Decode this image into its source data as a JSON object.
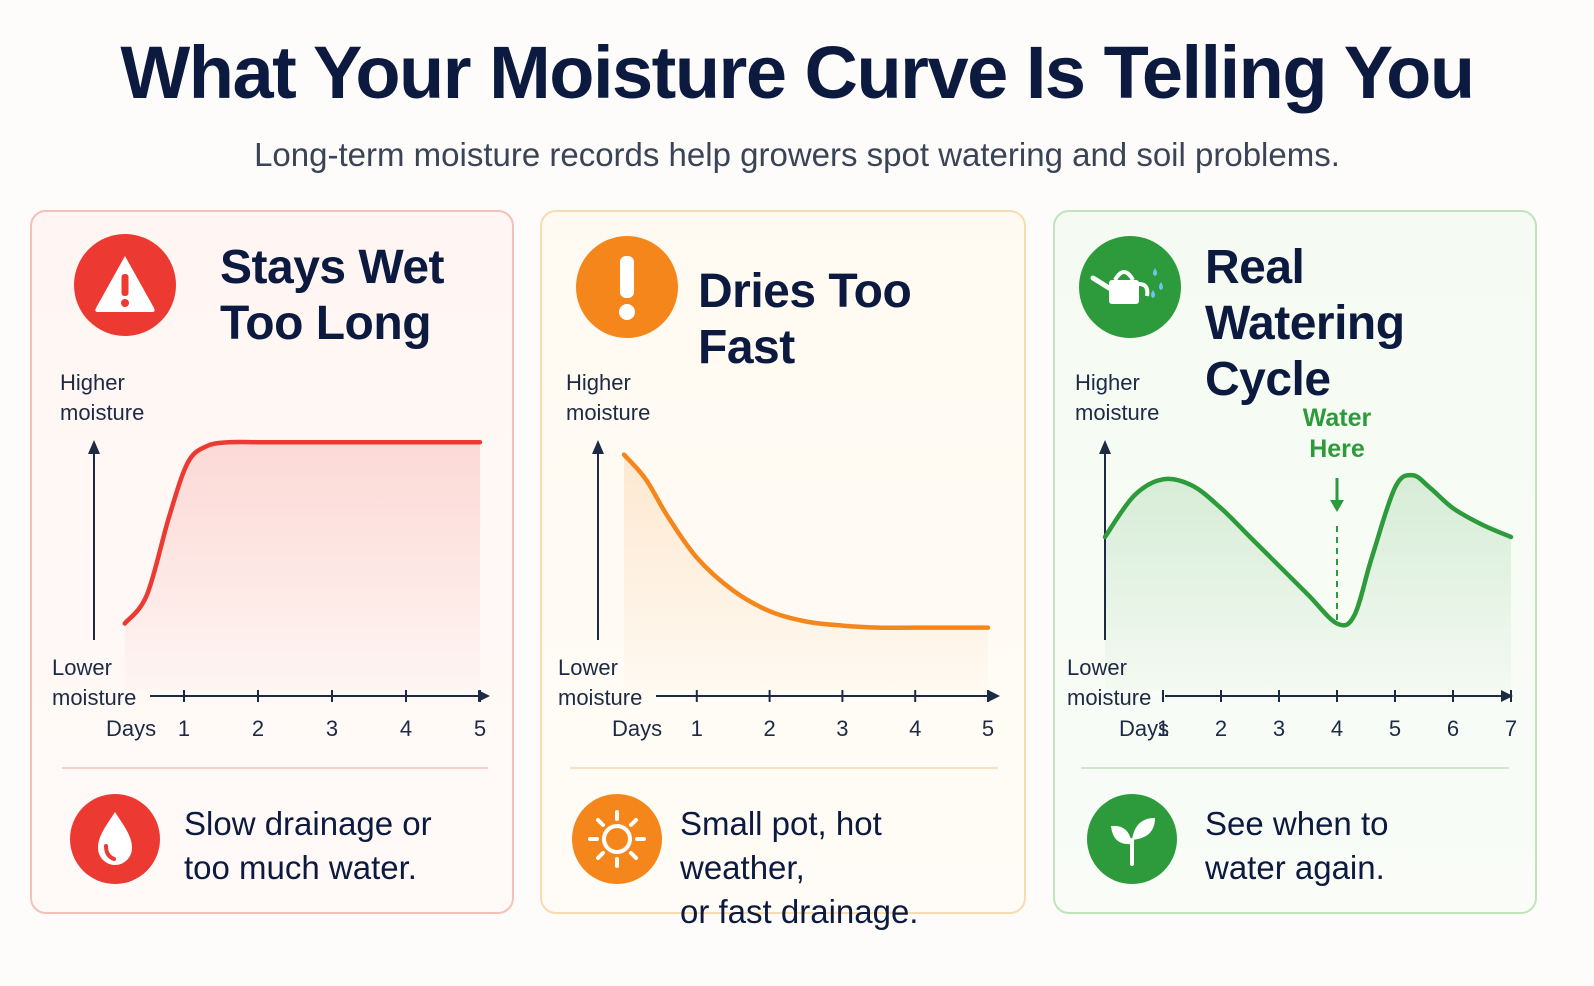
{
  "header": {
    "title": "What Your Moisture Curve Is Telling You",
    "subtitle": "Long-term moisture records help growers spot watering and soil problems."
  },
  "colors": {
    "red": "#ec3a33",
    "orange": "#f5861c",
    "green": "#2d9a3b",
    "navy": "#0d1a40"
  },
  "cards": [
    {
      "title_line1": "Stays Wet",
      "title_line2": "Too Long",
      "icon": "warning-triangle-icon",
      "footer_icon": "water-drop-icon",
      "footer_line1": "Slow drainage or",
      "footer_line2": "too much water."
    },
    {
      "title_line1": "Dries Too Fast",
      "icon": "exclamation-icon",
      "footer_icon": "sun-icon",
      "footer_line1": "Small pot, hot weather,",
      "footer_line2": "or fast drainage."
    },
    {
      "title_line1": "Real Watering",
      "title_line2": "Cycle",
      "icon": "watering-can-icon",
      "footer_icon": "sprout-icon",
      "footer_line1": "See when to",
      "footer_line2": "water again."
    }
  ],
  "chart_data": [
    {
      "type": "line",
      "title": "Stays Wet Too Long",
      "ylabel_top": [
        "Higher",
        "moisture"
      ],
      "ylabel_bottom": [
        "Lower",
        "moisture"
      ],
      "xlabel": "Days",
      "xticks": [
        "1",
        "2",
        "3",
        "4",
        "5"
      ],
      "xlim": [
        0,
        5
      ],
      "ylim": [
        0,
        1
      ],
      "x": [
        0.2,
        0.5,
        0.8,
        1.05,
        1.3,
        1.6,
        2.0,
        3.0,
        4.0,
        5.0
      ],
      "y": [
        0.08,
        0.22,
        0.6,
        0.86,
        0.94,
        0.96,
        0.96,
        0.96,
        0.96,
        0.96
      ],
      "color": "#ec3a33",
      "fill": true
    },
    {
      "type": "line",
      "title": "Dries Too Fast",
      "ylabel_top": [
        "Higher",
        "moisture"
      ],
      "ylabel_bottom": [
        "Lower",
        "moisture"
      ],
      "xlabel": "Days",
      "xticks": [
        "1",
        "2",
        "3",
        "4",
        "5"
      ],
      "xlim": [
        0,
        5
      ],
      "ylim": [
        0,
        1
      ],
      "x": [
        0.0,
        0.3,
        0.6,
        1.0,
        1.5,
        2.0,
        2.5,
        3.0,
        3.5,
        4.0,
        5.0
      ],
      "y": [
        0.9,
        0.78,
        0.6,
        0.4,
        0.24,
        0.14,
        0.09,
        0.07,
        0.06,
        0.06,
        0.06
      ],
      "color": "#f5861c",
      "fill": true
    },
    {
      "type": "line",
      "title": "Real Watering Cycle",
      "ylabel_top": [
        "Higher",
        "moisture"
      ],
      "ylabel_bottom": [
        "Lower",
        "moisture"
      ],
      "xlabel": "Days",
      "xticks": [
        "1",
        "2",
        "3",
        "4",
        "5",
        "6",
        "7"
      ],
      "xlim": [
        0,
        7
      ],
      "ylim": [
        0,
        1
      ],
      "x": [
        0.0,
        0.5,
        1.0,
        1.5,
        2.0,
        2.5,
        3.0,
        3.5,
        4.0,
        4.3,
        4.6,
        5.0,
        5.3,
        5.6,
        6.0,
        6.5,
        7.0
      ],
      "y": [
        0.5,
        0.7,
        0.78,
        0.75,
        0.64,
        0.5,
        0.36,
        0.22,
        0.08,
        0.12,
        0.4,
        0.74,
        0.8,
        0.74,
        0.64,
        0.56,
        0.5
      ],
      "color": "#2d9a3b",
      "fill": true,
      "annotation": {
        "x": 4,
        "line1": "Water",
        "line2": "Here"
      }
    }
  ]
}
